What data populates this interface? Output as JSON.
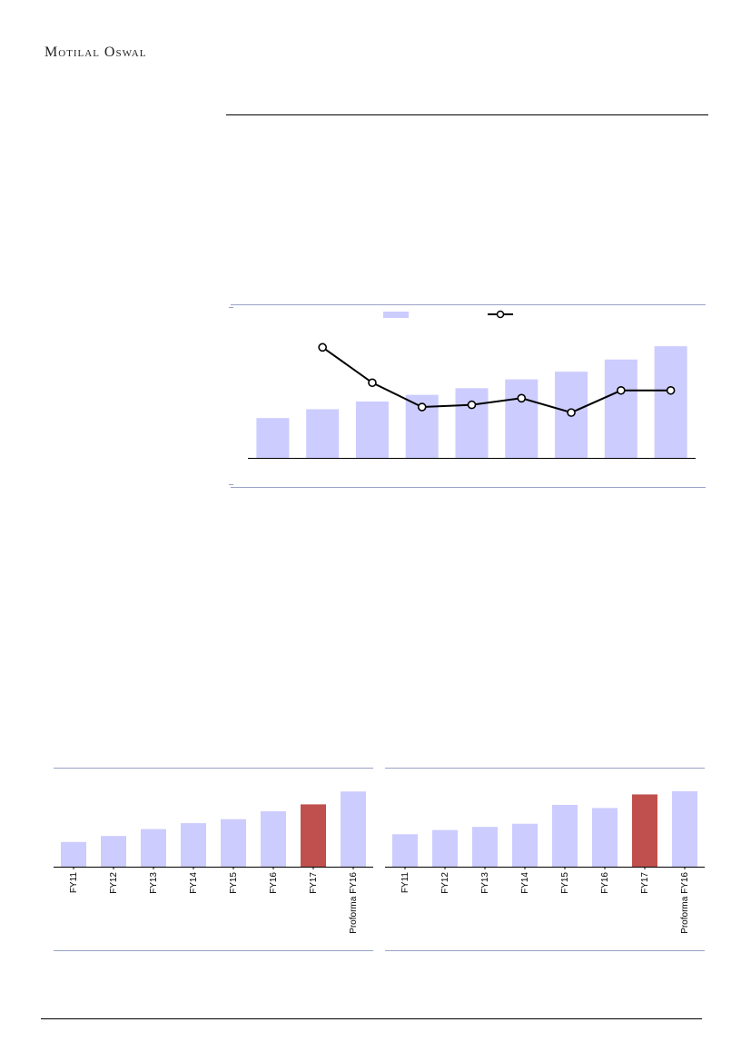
{
  "header": {
    "brand": "Motilal Oswal"
  },
  "colors": {
    "bar": "#ccccff",
    "highlight": "#c0504d",
    "line": "#000000",
    "rule": "#9aa3c8"
  },
  "chart_data": [
    {
      "type": "bar",
      "legend": {
        "placement": "top-center",
        "entries": [
          {
            "marker": "bar",
            "label": ""
          },
          {
            "marker": "line-circle",
            "label": ""
          }
        ]
      },
      "categories": [
        "",
        "",
        "",
        "",
        "",
        "",
        "",
        "",
        ""
      ],
      "series": [
        {
          "kind": "bar",
          "values": [
            18,
            22,
            25.5,
            28.5,
            31.5,
            35.5,
            39,
            44.5,
            50.5
          ]
        },
        {
          "kind": "line",
          "values": [
            null,
            50,
            34,
            23,
            24,
            27,
            20.5,
            30.5,
            30.5
          ]
        }
      ],
      "ylim": [
        0,
        60
      ]
    },
    {
      "type": "bar",
      "categories": [
        "FY11",
        "FY12",
        "FY13",
        "FY14",
        "FY15",
        "FY16",
        "FY17",
        "Proforma FY16"
      ],
      "values": [
        25,
        31,
        38,
        44,
        48,
        56,
        63,
        76
      ],
      "highlight_index": 6,
      "ylim": [
        0,
        90
      ]
    },
    {
      "type": "bar",
      "categories": [
        "FY11",
        "FY12",
        "FY13",
        "FY14",
        "FY15",
        "FY16",
        "FY17",
        "Proforma FY16"
      ],
      "values": [
        31,
        35,
        38,
        41,
        59,
        56,
        69,
        72
      ],
      "highlight_index": 6,
      "ylim": [
        0,
        85
      ]
    }
  ]
}
